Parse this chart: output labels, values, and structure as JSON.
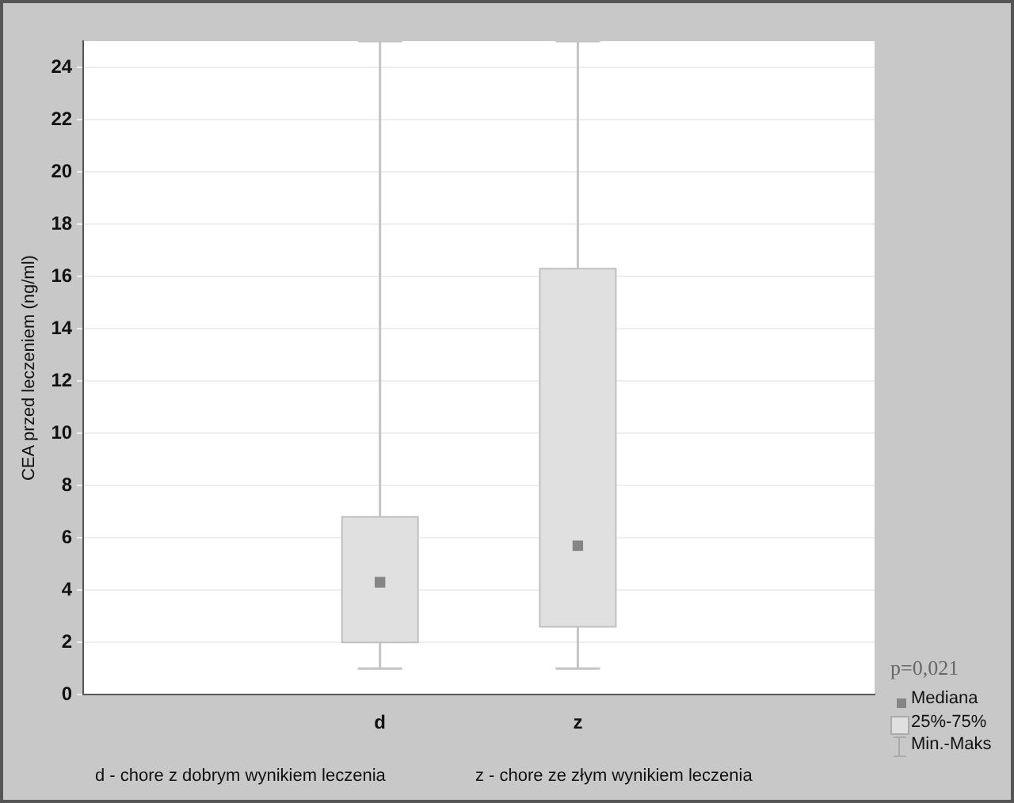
{
  "chart_data": {
    "type": "box",
    "ylabel": "CEA przed leczeniem (ng/ml)",
    "categories": [
      "d",
      "z"
    ],
    "boxes": [
      {
        "low": 1,
        "q1": 2,
        "median": 4.3,
        "q3": 6.8,
        "high": 25
      },
      {
        "low": 1,
        "q1": 2.6,
        "median": 5.7,
        "q3": 16.3,
        "high": 25
      }
    ],
    "color": "#e0e0e0",
    "ylim": [
      0,
      25
    ],
    "yticks": [
      0,
      2,
      4,
      6,
      8,
      10,
      12,
      14,
      16,
      18,
      20,
      22,
      24
    ],
    "grid": "y",
    "marker": "square",
    "annotations": [
      "p=0,021",
      "Mediana",
      "25%-75%",
      "Min.-Maks",
      "d - chore z dobrym wynikiem leczenia",
      "z - chore ze złym wynikiem leczenia"
    ]
  }
}
